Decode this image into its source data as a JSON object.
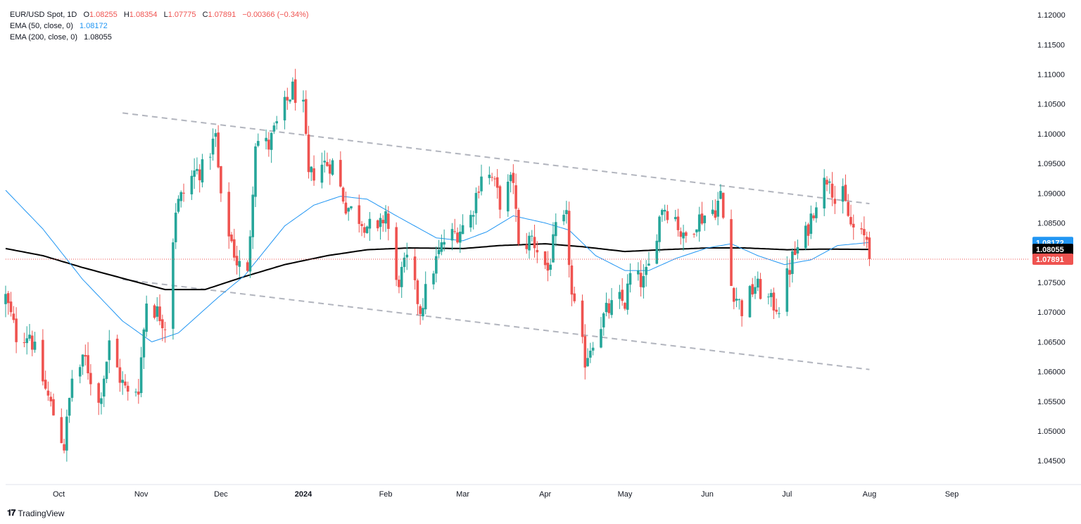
{
  "header": {
    "symbol": "EUR/USD Spot, 1D",
    "ohlc": {
      "o_label": "O",
      "o": "1.08255",
      "h_label": "H",
      "h": "1.08354",
      "l_label": "L",
      "l": "1.07775",
      "c_label": "C",
      "c": "1.07891",
      "change": "−0.00366 (−0.34%)"
    },
    "ema50_label": "EMA (50, close, 0)",
    "ema50_value": "1.08172",
    "ema200_label": "EMA (200, close, 0)",
    "ema200_value": "1.08055"
  },
  "footer": {
    "brand": "TradingView"
  },
  "colors": {
    "up": "#26a69a",
    "down": "#ef5350",
    "ema50": "#2196f3",
    "ema200": "#000000",
    "trendline": "#b2b5be",
    "price_line": "#ef5350",
    "axis_text": "#131722"
  },
  "chart_data": {
    "type": "candlestick",
    "title": "EUR/USD Spot, 1D",
    "xlabel": "",
    "ylabel": "",
    "ylim": [
      1.041,
      1.1225
    ],
    "y_ticks": [
      "1.04500",
      "1.05000",
      "1.05500",
      "1.06000",
      "1.06500",
      "1.07000",
      "1.07500",
      "1.08000",
      "1.08500",
      "1.09000",
      "1.09500",
      "1.10000",
      "1.10500",
      "1.11000",
      "1.11500",
      "1.12000"
    ],
    "x_ticks": [
      {
        "label": "Oct",
        "date": "2023-10-01"
      },
      {
        "label": "Nov",
        "date": "2023-11-01"
      },
      {
        "label": "Dec",
        "date": "2023-12-01"
      },
      {
        "label": "2024",
        "date": "2024-01-01",
        "bold": true
      },
      {
        "label": "Feb",
        "date": "2024-02-01"
      },
      {
        "label": "Mar",
        "date": "2024-03-01"
      },
      {
        "label": "Apr",
        "date": "2024-04-01"
      },
      {
        "label": "May",
        "date": "2024-05-01"
      },
      {
        "label": "Jun",
        "date": "2024-06-01"
      },
      {
        "label": "Jul",
        "date": "2024-07-01"
      },
      {
        "label": "Aug",
        "date": "2024-08-01"
      },
      {
        "label": "Sep",
        "date": "2024-09-01"
      }
    ],
    "x_range": [
      "2023-09-11",
      "2024-09-30"
    ],
    "last_date": "2024-08-01",
    "grid": false,
    "legend": "top-left",
    "close_path": [
      [
        "2023-09-11",
        1.0725
      ],
      [
        "2023-09-15",
        1.066
      ],
      [
        "2023-09-20",
        1.0665
      ],
      [
        "2023-09-26",
        1.057
      ],
      [
        "2023-10-03",
        1.0475
      ],
      [
        "2023-10-06",
        1.059
      ],
      [
        "2023-10-11",
        1.062
      ],
      [
        "2023-10-16",
        1.0545
      ],
      [
        "2023-10-20",
        1.0645
      ],
      [
        "2023-10-24",
        1.059
      ],
      [
        "2023-10-27",
        1.056
      ],
      [
        "2023-10-31",
        1.0575
      ],
      [
        "2023-11-03",
        1.072
      ],
      [
        "2023-11-08",
        1.0695
      ],
      [
        "2023-11-10",
        1.068
      ],
      [
        "2023-11-14",
        1.0875
      ],
      [
        "2023-11-21",
        1.0935
      ],
      [
        "2023-11-24",
        1.094
      ],
      [
        "2023-11-29",
        1.0995
      ],
      [
        "2023-12-01",
        1.0885
      ],
      [
        "2023-12-07",
        1.0785
      ],
      [
        "2023-12-11",
        1.076
      ],
      [
        "2023-12-14",
        1.099
      ],
      [
        "2023-12-19",
        1.098
      ],
      [
        "2023-12-22",
        1.1015
      ],
      [
        "2023-12-28",
        1.1075
      ],
      [
        "2024-01-01",
        1.104
      ],
      [
        "2024-01-03",
        1.0925
      ],
      [
        "2024-01-08",
        1.095
      ],
      [
        "2024-01-12",
        1.095
      ],
      [
        "2024-01-17",
        1.088
      ],
      [
        "2024-01-23",
        1.0855
      ],
      [
        "2024-01-29",
        1.083
      ],
      [
        "2024-02-01",
        1.087
      ],
      [
        "2024-02-05",
        1.0745
      ],
      [
        "2024-02-09",
        1.0785
      ],
      [
        "2024-02-14",
        1.0705
      ],
      [
        "2024-02-19",
        1.0775
      ],
      [
        "2024-02-23",
        1.082
      ],
      [
        "2024-02-28",
        1.0835
      ],
      [
        "2024-03-04",
        1.086
      ],
      [
        "2024-03-08",
        1.0935
      ],
      [
        "2024-03-12",
        1.0925
      ],
      [
        "2024-03-15",
        1.0885
      ],
      [
        "2024-03-20",
        1.0925
      ],
      [
        "2024-03-22",
        1.0805
      ],
      [
        "2024-03-27",
        1.0825
      ],
      [
        "2024-04-02",
        1.077
      ],
      [
        "2024-04-05",
        1.0835
      ],
      [
        "2024-04-09",
        1.0855
      ],
      [
        "2024-04-11",
        1.0725
      ],
      [
        "2024-04-16",
        1.062
      ],
      [
        "2024-04-19",
        1.0655
      ],
      [
        "2024-04-24",
        1.07
      ],
      [
        "2024-04-29",
        1.072
      ],
      [
        "2024-05-01",
        1.0715
      ],
      [
        "2024-05-03",
        1.076
      ],
      [
        "2024-05-08",
        1.075
      ],
      [
        "2024-05-10",
        1.0775
      ],
      [
        "2024-05-15",
        1.088
      ],
      [
        "2024-05-20",
        1.086
      ],
      [
        "2024-05-23",
        1.082
      ],
      [
        "2024-05-28",
        1.0855
      ],
      [
        "2024-06-04",
        1.0875
      ],
      [
        "2024-06-06",
        1.0895
      ],
      [
        "2024-06-10",
        1.0745
      ],
      [
        "2024-06-14",
        1.0705
      ],
      [
        "2024-06-19",
        1.0745
      ],
      [
        "2024-06-25",
        1.0715
      ],
      [
        "2024-06-28",
        1.071
      ],
      [
        "2024-07-03",
        1.079
      ],
      [
        "2024-07-08",
        1.083
      ],
      [
        "2024-07-12",
        1.089
      ],
      [
        "2024-07-17",
        1.0935
      ],
      [
        "2024-07-19",
        1.0885
      ],
      [
        "2024-07-22",
        1.0895
      ],
      [
        "2024-07-25",
        1.0845
      ],
      [
        "2024-07-29",
        1.0825
      ],
      [
        "2024-07-31",
        1.0825
      ],
      [
        "2024-08-01",
        1.07891
      ]
    ],
    "ema50_path": [
      [
        "2023-09-11",
        1.0905
      ],
      [
        "2023-09-25",
        1.084
      ],
      [
        "2023-10-10",
        1.0755
      ],
      [
        "2023-10-25",
        1.0685
      ],
      [
        "2023-11-05",
        1.065
      ],
      [
        "2023-11-15",
        1.0665
      ],
      [
        "2023-11-30",
        1.0725
      ],
      [
        "2023-12-10",
        1.0762
      ],
      [
        "2023-12-25",
        1.0845
      ],
      [
        "2024-01-05",
        1.088
      ],
      [
        "2024-01-15",
        1.0895
      ],
      [
        "2024-01-25",
        1.089
      ],
      [
        "2024-02-05",
        1.0862
      ],
      [
        "2024-02-20",
        1.0825
      ],
      [
        "2024-03-01",
        1.082
      ],
      [
        "2024-03-10",
        1.0835
      ],
      [
        "2024-03-20",
        1.0862
      ],
      [
        "2024-04-01",
        1.085
      ],
      [
        "2024-04-10",
        1.0838
      ],
      [
        "2024-04-20",
        1.0795
      ],
      [
        "2024-05-01",
        1.077
      ],
      [
        "2024-05-10",
        1.077
      ],
      [
        "2024-05-20",
        1.079
      ],
      [
        "2024-06-01",
        1.0808
      ],
      [
        "2024-06-10",
        1.0815
      ],
      [
        "2024-06-20",
        1.0795
      ],
      [
        "2024-06-30",
        1.078
      ],
      [
        "2024-07-10",
        1.0788
      ],
      [
        "2024-07-20",
        1.0812
      ],
      [
        "2024-08-01",
        1.08172
      ]
    ],
    "ema200_path": [
      [
        "2023-09-11",
        1.0807
      ],
      [
        "2023-09-25",
        1.0795
      ],
      [
        "2023-10-10",
        1.0775
      ],
      [
        "2023-10-25",
        1.0757
      ],
      [
        "2023-11-10",
        1.0738
      ],
      [
        "2023-11-25",
        1.0738
      ],
      [
        "2023-12-10",
        1.076
      ],
      [
        "2023-12-25",
        1.078
      ],
      [
        "2024-01-10",
        1.0795
      ],
      [
        "2024-01-25",
        1.0805
      ],
      [
        "2024-02-10",
        1.0808
      ],
      [
        "2024-03-01",
        1.0807
      ],
      [
        "2024-03-15",
        1.0812
      ],
      [
        "2024-04-01",
        1.0815
      ],
      [
        "2024-04-15",
        1.081
      ],
      [
        "2024-05-01",
        1.0802
      ],
      [
        "2024-05-15",
        1.0805
      ],
      [
        "2024-06-01",
        1.0808
      ],
      [
        "2024-06-15",
        1.0808
      ],
      [
        "2024-07-01",
        1.0805
      ],
      [
        "2024-07-15",
        1.0806
      ],
      [
        "2024-08-01",
        1.08055
      ]
    ],
    "trendlines": [
      {
        "from": [
          "2023-10-25",
          1.1035
        ],
        "to": [
          "2024-08-01",
          1.08825
        ]
      },
      {
        "from": [
          "2023-10-25",
          1.0755
        ],
        "to": [
          "2024-08-01",
          1.06035
        ]
      }
    ],
    "price_labels": [
      {
        "text": "1.08172",
        "value": 1.08172,
        "color": "#2196f3",
        "text_color": "#ffffff"
      },
      {
        "text": "1.08055",
        "value": 1.08055,
        "color": "#000000",
        "text_color": "#ffffff"
      },
      {
        "text": "1.07891",
        "value": 1.07891,
        "color": "#ef5350",
        "text_color": "#ffffff"
      }
    ],
    "last_price": 1.07891
  }
}
